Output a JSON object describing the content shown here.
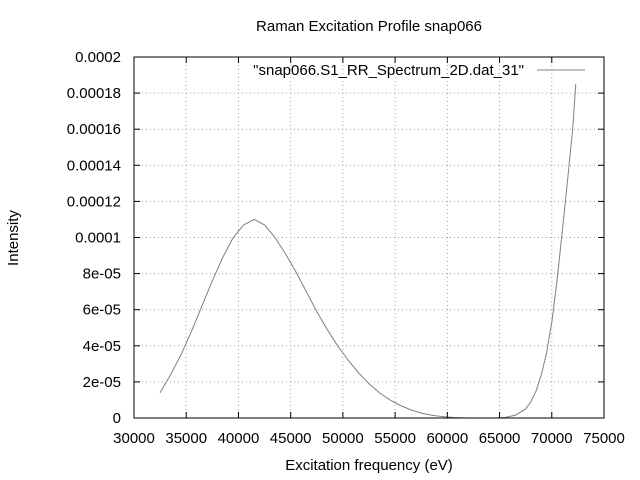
{
  "chart_data": {
    "type": "line",
    "title": "Raman Excitation Profile snap066",
    "xlabel": "Excitation frequency (eV)",
    "ylabel": "Intensity",
    "xlim": [
      30000,
      75000
    ],
    "ylim": [
      0,
      0.0002
    ],
    "grid": true,
    "legend_position": "top-right",
    "x_ticks": [
      30000,
      35000,
      40000,
      45000,
      50000,
      55000,
      60000,
      65000,
      70000,
      75000
    ],
    "x_tick_labels": [
      "30000",
      "35000",
      "40000",
      "45000",
      "50000",
      "55000",
      "60000",
      "65000",
      "70000",
      "75000"
    ],
    "y_ticks": [
      0,
      2e-05,
      4e-05,
      6e-05,
      8e-05,
      0.0001,
      0.00012,
      0.00014,
      0.00016,
      0.00018,
      0.0002
    ],
    "y_tick_labels": [
      "0",
      "2e-05",
      "4e-05",
      "6e-05",
      "8e-05",
      "0.0001",
      "0.00012",
      "0.00014",
      "0.00016",
      "0.00018",
      "0.0002"
    ],
    "series": [
      {
        "name": "\"snap066.S1_RR_Spectrum_2D.dat_31\"",
        "color": "#808080",
        "x": [
          32500,
          33500,
          34500,
          35500,
          36500,
          37500,
          38500,
          39500,
          40500,
          41500,
          42500,
          43500,
          44500,
          45500,
          46500,
          47500,
          48500,
          49500,
          50500,
          51500,
          52500,
          53500,
          54500,
          55500,
          56500,
          57500,
          58500,
          59500,
          60500,
          61500,
          62500,
          63500,
          64500,
          65500,
          66500,
          67500,
          68000,
          68500,
          69000,
          69500,
          70000,
          70500,
          71000,
          71500,
          72000,
          72300
        ],
        "y": [
          1.4e-05,
          2.4e-05,
          3.5e-05,
          4.8e-05,
          6.2e-05,
          7.6e-05,
          8.9e-05,
          0.0001,
          0.000107,
          0.00011,
          0.000107,
          0.0001,
          9.1e-05,
          8.1e-05,
          7e-05,
          5.9e-05,
          4.9e-05,
          4e-05,
          3.2e-05,
          2.5e-05,
          1.9e-05,
          1.4e-05,
          1e-05,
          7e-06,
          4.5e-06,
          2.7e-06,
          1.5e-06,
          8e-07,
          3e-07,
          1e-07,
          0.0,
          0.0,
          0.0,
          3e-07,
          1.5e-06,
          5e-06,
          9e-06,
          1.5e-05,
          2.4e-05,
          3.6e-05,
          5.3e-05,
          7.6e-05,
          0.000103,
          0.000131,
          0.00016,
          0.000185
        ]
      }
    ]
  }
}
